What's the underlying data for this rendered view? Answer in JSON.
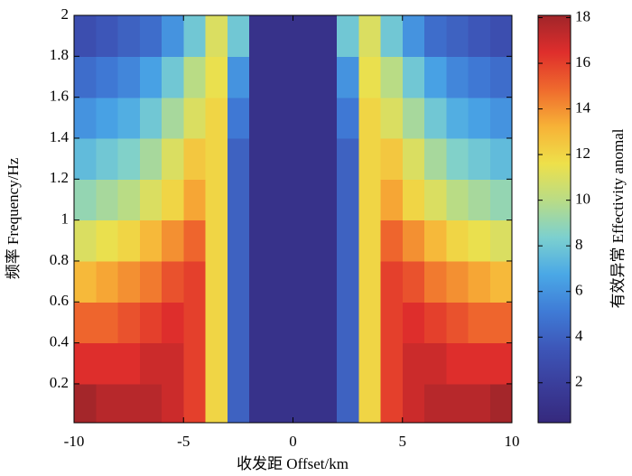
{
  "chart_data": {
    "type": "heatmap",
    "xlabel": "收发距 Offset/km",
    "ylabel": "频率 Frequency/Hz",
    "colorbar_label": "有效异常 Effectivity anomal",
    "x": [
      -9.5,
      -8.5,
      -7.5,
      -6.5,
      -5.5,
      -4.5,
      -3.5,
      -2.5,
      -1.5,
      -0.5,
      0.5,
      1.5,
      2.5,
      3.5,
      4.5,
      5.5,
      6.5,
      7.5,
      8.5,
      9.5
    ],
    "y": [
      0.1,
      0.3,
      0.5,
      0.7,
      0.9,
      1.1,
      1.3,
      1.5,
      1.7,
      1.9
    ],
    "z": [
      [
        18,
        17.5,
        17.5,
        17.5,
        17,
        16,
        12,
        4,
        1,
        1,
        1,
        1,
        4,
        12,
        16,
        17,
        17.5,
        17.5,
        17.5,
        18
      ],
      [
        16.5,
        16.5,
        16.5,
        17,
        17,
        16,
        12,
        4,
        1,
        1,
        1,
        1,
        4,
        12,
        16,
        17,
        17,
        16.5,
        16.5,
        16.5
      ],
      [
        15,
        15,
        15.5,
        16,
        16.5,
        16,
        12,
        4,
        1,
        1,
        1,
        1,
        4,
        12,
        16,
        16.5,
        16,
        15.5,
        15,
        15
      ],
      [
        13,
        13.5,
        14,
        14.5,
        15.5,
        16,
        12,
        4,
        1,
        1,
        1,
        1,
        4,
        12,
        16,
        15.5,
        14.5,
        14,
        13.5,
        13
      ],
      [
        11,
        11.5,
        12,
        13,
        14,
        15,
        12,
        4,
        1,
        1,
        1,
        1,
        4,
        12,
        15,
        14,
        13,
        12,
        11.5,
        11
      ],
      [
        9,
        9.5,
        10,
        11,
        12,
        13.5,
        12,
        4,
        1,
        1,
        1,
        1,
        4,
        12,
        13.5,
        12,
        11,
        10,
        9.5,
        9
      ],
      [
        7.5,
        8,
        8.5,
        9.5,
        11,
        12.5,
        12,
        4,
        1,
        1,
        1,
        1,
        4,
        12,
        12.5,
        11,
        9.5,
        8.5,
        8,
        7.5
      ],
      [
        6,
        6.5,
        7,
        8,
        9.5,
        11,
        12,
        5,
        1,
        1,
        1,
        1,
        5,
        12,
        11,
        9.5,
        8,
        7,
        6.5,
        6
      ],
      [
        4.5,
        5,
        5.5,
        6.5,
        8,
        10,
        11.5,
        6,
        1,
        1,
        1,
        1,
        6,
        11.5,
        10,
        8,
        6.5,
        5.5,
        5,
        4.5
      ],
      [
        3,
        3.5,
        4,
        4.5,
        6,
        8,
        11,
        8,
        1,
        1,
        1,
        1,
        8,
        11,
        8,
        6,
        4.5,
        4,
        3.5,
        3
      ]
    ],
    "xlim": [
      -10,
      10
    ],
    "ylim": [
      0.01,
      2
    ],
    "clim": [
      0.25,
      18.1
    ],
    "xticks": [
      -10,
      -5,
      0,
      5,
      10
    ],
    "yticks": [
      0.2,
      0.4,
      0.6,
      0.8,
      1,
      1.2,
      1.4,
      1.6,
      1.8,
      2
    ],
    "cticks": [
      2,
      4,
      6,
      8,
      10,
      12,
      14,
      16,
      18
    ],
    "colormap": [
      "#35297d",
      "#3a3d9a",
      "#3d56b8",
      "#3f7bd6",
      "#4aa8e6",
      "#7cd0cf",
      "#b9dc86",
      "#eee04a",
      "#f7b237",
      "#ef6a2d",
      "#df2e2c",
      "#a0252a"
    ]
  }
}
